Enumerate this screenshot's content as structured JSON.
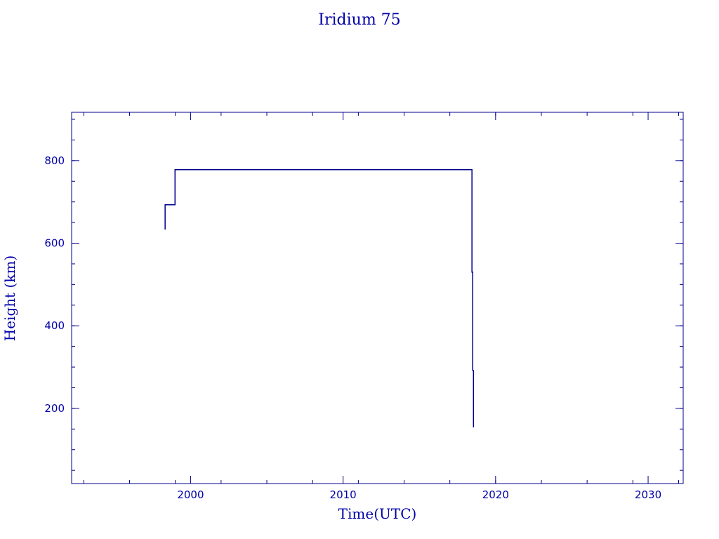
{
  "chart_data": {
    "type": "line",
    "title": "Iridium 75",
    "xlabel": "Time(UTC)",
    "ylabel": "Height (km)",
    "xlim": [
      1992.2,
      2032.3
    ],
    "ylim": [
      18,
      917
    ],
    "x_ticks": [
      2000,
      2010,
      2020,
      2030
    ],
    "y_ticks": [
      200,
      400,
      600,
      800
    ],
    "grid": false,
    "color": "#00008b",
    "series": [
      {
        "points": [
          [
            1998.33,
            633
          ],
          [
            1998.33,
            693
          ],
          [
            1998.98,
            693
          ],
          [
            1998.98,
            778
          ],
          [
            2018.45,
            778
          ],
          [
            2018.45,
            530
          ],
          [
            2018.5,
            530
          ],
          [
            2018.5,
            292
          ],
          [
            2018.55,
            292
          ],
          [
            2018.55,
            154
          ]
        ]
      }
    ]
  }
}
